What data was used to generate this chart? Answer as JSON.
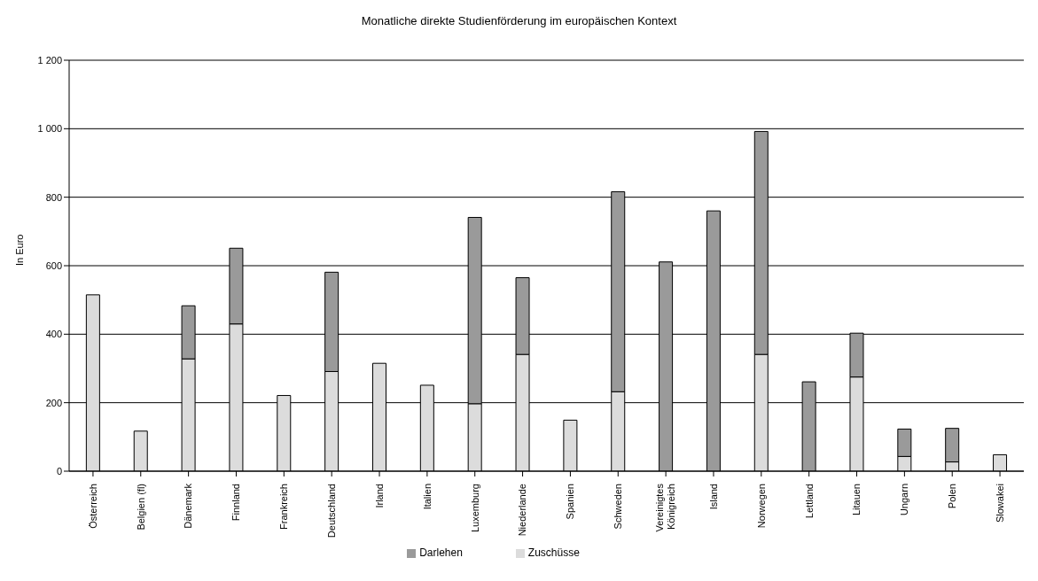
{
  "chart_data": {
    "type": "bar",
    "title": "Monatliche direkte Studienförderung im europäischen Kontext",
    "ylabel": "In Euro",
    "categories": [
      "Österreich",
      "Belgien (fl)",
      "Dänemark",
      "Finnland",
      "Frankreich",
      "Deutschland",
      "Irland",
      "Italien",
      "Luxemburg",
      "Niederlande",
      "Spanien",
      "Schweden",
      "Vereinigtes Königreich",
      "Island",
      "Norwegen",
      "Lettland",
      "Litauen",
      "Ungarn",
      "Polen",
      "Slowakei"
    ],
    "series": [
      {
        "name": "Zuschüsse",
        "color": "#dcdcdc",
        "values": [
          515,
          117,
          328,
          430,
          221,
          291,
          315,
          251,
          197,
          341,
          149,
          232,
          0,
          0,
          341,
          0,
          275,
          43,
          27,
          48
        ]
      },
      {
        "name": "Darlehen",
        "color": "#9a9a9a",
        "values": [
          0,
          0,
          155,
          221,
          0,
          290,
          0,
          0,
          544,
          224,
          0,
          584,
          611,
          760,
          651,
          261,
          128,
          80,
          98,
          0
        ]
      }
    ],
    "stacked": true,
    "ylim": [
      0,
      1200
    ],
    "yticks": [
      0,
      200,
      400,
      600,
      800,
      {
        "value": 1000,
        "label": "1 000"
      },
      {
        "value": 1200,
        "label": "1 200"
      }
    ],
    "grid": "y",
    "legend": "bottom"
  }
}
